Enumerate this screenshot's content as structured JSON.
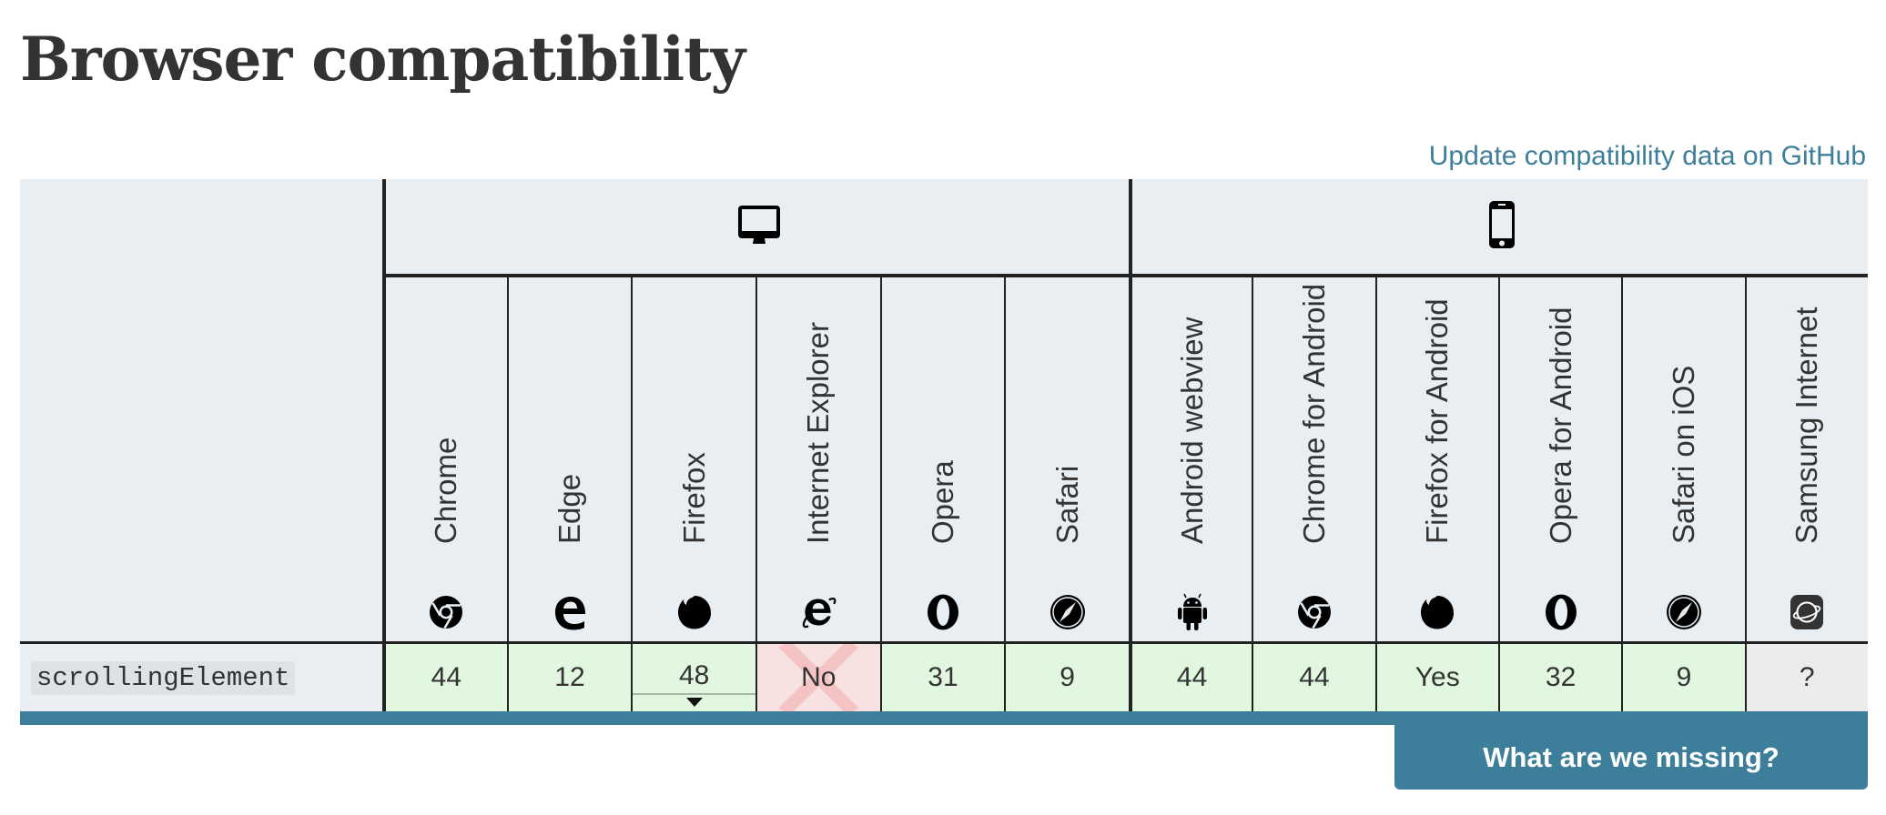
{
  "page": {
    "title": "Browser compatibility",
    "github_link": "Update compatibility data on GitHub"
  },
  "platforms": [
    {
      "name": "desktop",
      "icon": "desktop-monitor-icon"
    },
    {
      "name": "mobile",
      "icon": "mobile-phone-icon"
    }
  ],
  "browsers": [
    {
      "name": "Chrome",
      "icon": "chrome-icon",
      "platform": "desktop"
    },
    {
      "name": "Edge",
      "icon": "edge-icon",
      "platform": "desktop"
    },
    {
      "name": "Firefox",
      "icon": "firefox-icon",
      "platform": "desktop"
    },
    {
      "name": "Internet Explorer",
      "icon": "internet-explorer-icon",
      "platform": "desktop"
    },
    {
      "name": "Opera",
      "icon": "opera-icon",
      "platform": "desktop"
    },
    {
      "name": "Safari",
      "icon": "safari-icon",
      "platform": "desktop"
    },
    {
      "name": "Android webview",
      "icon": "android-icon",
      "platform": "mobile"
    },
    {
      "name": "Chrome for Android",
      "icon": "chrome-icon",
      "platform": "mobile"
    },
    {
      "name": "Firefox for Android",
      "icon": "firefox-icon",
      "platform": "mobile"
    },
    {
      "name": "Opera for Android",
      "icon": "opera-icon",
      "platform": "mobile"
    },
    {
      "name": "Safari on iOS",
      "icon": "safari-icon",
      "platform": "mobile"
    },
    {
      "name": "Samsung Internet",
      "icon": "samsung-internet-icon",
      "platform": "mobile"
    }
  ],
  "rows": [
    {
      "feature": "scrollingElement",
      "support": [
        {
          "value": "44",
          "status": "yes"
        },
        {
          "value": "12",
          "status": "yes"
        },
        {
          "value": "48",
          "status": "yes",
          "has_notes": true
        },
        {
          "value": "No",
          "status": "no"
        },
        {
          "value": "31",
          "status": "yes"
        },
        {
          "value": "9",
          "status": "yes"
        },
        {
          "value": "44",
          "status": "yes"
        },
        {
          "value": "44",
          "status": "yes"
        },
        {
          "value": "Yes",
          "status": "yes"
        },
        {
          "value": "32",
          "status": "yes"
        },
        {
          "value": "9",
          "status": "yes"
        },
        {
          "value": "?",
          "status": "unknown"
        }
      ]
    }
  ],
  "footer": {
    "missing_button": "What are we missing?"
  },
  "colors": {
    "accent": "#3d7e9a",
    "header_bg": "#e8eef1",
    "supported_bg": "#e2f7df",
    "unsupported_bg": "#f8e1e1",
    "unknown_bg": "#ececec"
  }
}
